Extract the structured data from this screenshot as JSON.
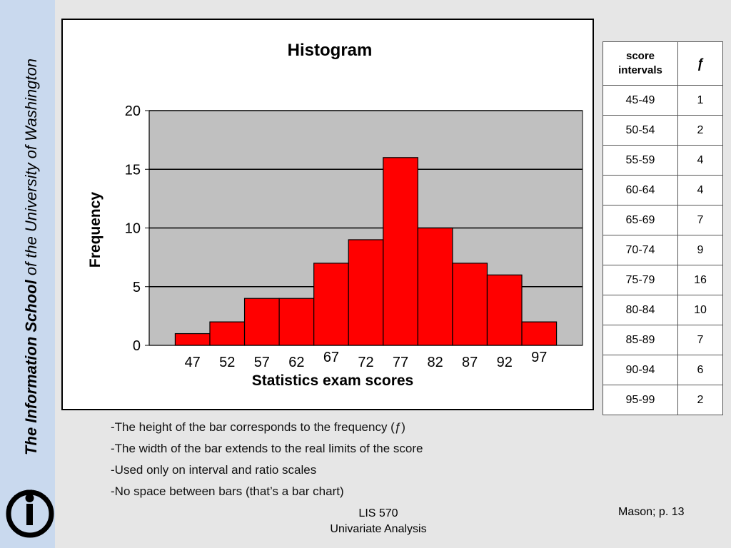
{
  "sidebar": {
    "title_bold": "The Information School",
    "title_rest": " of the University of Washington",
    "logo_text": "THE INFORMATION SCHOOL"
  },
  "chart_data": {
    "type": "bar",
    "title": "Histogram",
    "xlabel": "Statistics exam scores",
    "ylabel": "Frequency",
    "categories": [
      "47",
      "52",
      "57",
      "62",
      "67",
      "72",
      "77",
      "82",
      "87",
      "92",
      "97"
    ],
    "values": [
      1,
      2,
      4,
      4,
      7,
      9,
      16,
      10,
      7,
      6,
      2
    ],
    "ylim": [
      0,
      20
    ],
    "yticks": [
      0,
      5,
      10,
      15,
      20
    ],
    "grid": true,
    "bar_color": "#ff0000",
    "plot_background": "#c0c0c0"
  },
  "table": {
    "header_interval": "score intervals",
    "header_freq": "ƒ",
    "rows": [
      {
        "interval": "45-49",
        "f": "1"
      },
      {
        "interval": "50-54",
        "f": "2"
      },
      {
        "interval": "55-59",
        "f": "4"
      },
      {
        "interval": "60-64",
        "f": "4"
      },
      {
        "interval": "65-69",
        "f": "7"
      },
      {
        "interval": "70-74",
        "f": "9"
      },
      {
        "interval": "75-79",
        "f": "16"
      },
      {
        "interval": "80-84",
        "f": "10"
      },
      {
        "interval": "85-89",
        "f": "7"
      },
      {
        "interval": "90-94",
        "f": "6"
      },
      {
        "interval": "95-99",
        "f": "2"
      }
    ]
  },
  "notes": [
    "-The height of the bar corresponds to the frequency (ƒ)",
    "-The width of the bar extends to the real limits of the score",
    "-Used only on interval and ratio scales",
    "-No space between bars (that’s a bar chart)"
  ],
  "footer": {
    "course": "LIS 570",
    "topic": "Univariate Analysis",
    "source": "Mason; p. 13"
  }
}
